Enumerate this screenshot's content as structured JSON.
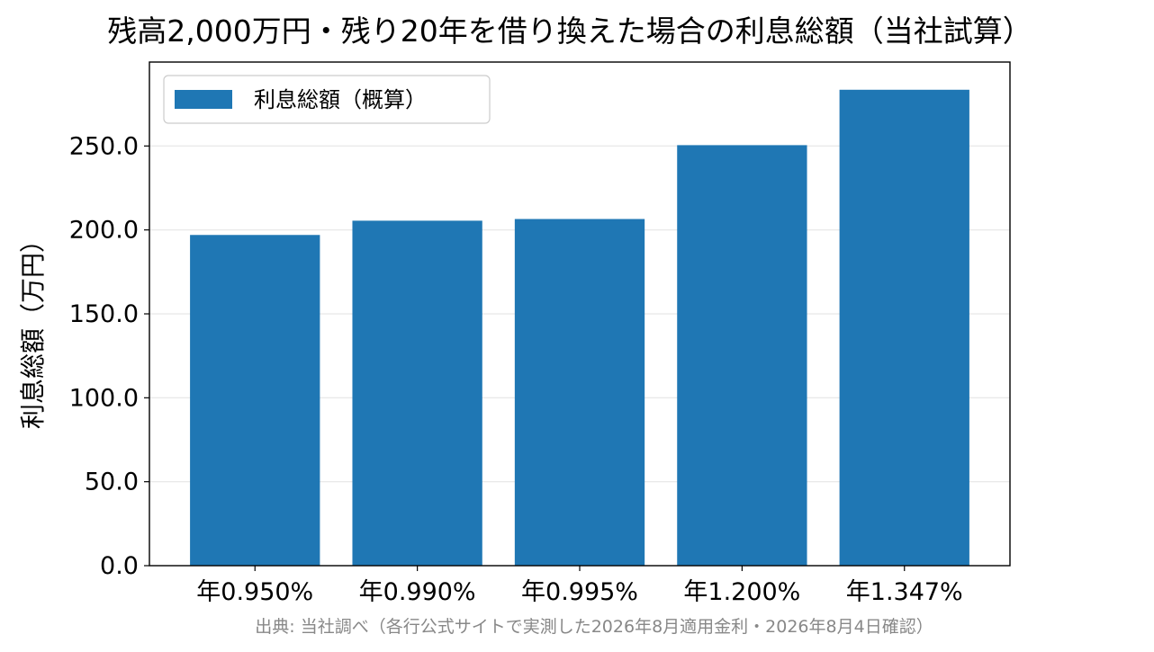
{
  "chart_data": {
    "type": "bar",
    "title": "残高2,000万円・残り20年を借り換えた場合の利息総額（当社試算）",
    "xlabel": "",
    "ylabel": "利息総額（万円）",
    "categories": [
      "年0.950%",
      "年0.990%",
      "年0.995%",
      "年1.200%",
      "年1.347%"
    ],
    "series": [
      {
        "name": "利息総額（概算）",
        "values": [
          197.0,
          205.5,
          206.5,
          250.5,
          283.5
        ],
        "color": "#1f77b4"
      }
    ],
    "ylim": [
      0,
      300
    ],
    "yticks": [
      0,
      50,
      100,
      150,
      200,
      250
    ],
    "ytick_labels": [
      "0.0",
      "50.0",
      "100.0",
      "150.0",
      "200.0",
      "250.0"
    ],
    "grid": "y",
    "legend_position": "upper-left",
    "source": "出典: 当社調べ（各行公式サイトで実測した2026年8月適用金利・2026年8月4日確認）"
  }
}
